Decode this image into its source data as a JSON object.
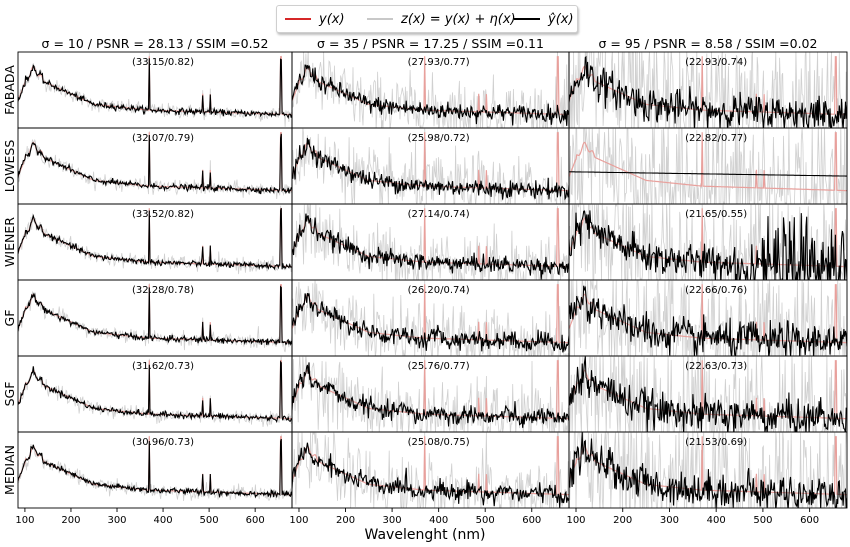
{
  "legend": {
    "entries": [
      {
        "label": "y(x)",
        "color": "#d62728"
      },
      {
        "label": "z(x) = y(x) + η(x)",
        "color": "#c8c8c8"
      },
      {
        "label": "ŷ(x)",
        "color": "#000000"
      }
    ]
  },
  "xlabel": "Wavelenght (nm)",
  "chart_data": {
    "type": "line",
    "layout": "grid 6 rows x 3 columns, shared x axis",
    "xlim": [
      85,
      680
    ],
    "xticks": [
      100,
      200,
      300,
      400,
      500,
      600
    ],
    "columns": [
      {
        "sigma": "10",
        "psnr": "28.13",
        "ssim": "0.52",
        "title": "σ = 10 / PSNR = 28.13 / SSIM =0.52"
      },
      {
        "sigma": "35",
        "psnr": "17.25",
        "ssim": "0.11",
        "title": "σ = 35 / PSNR = 17.25 / SSIM =0.11"
      },
      {
        "sigma": "95",
        "psnr": "8.58",
        "ssim": "0.02",
        "title": "σ = 95 / PSNR = 8.58 / SSIM =0.02"
      }
    ],
    "rows": [
      {
        "method": "FABADA",
        "scores": [
          "(33.15/0.82)",
          "(27.93/0.77)",
          "(22.93/0.74)"
        ]
      },
      {
        "method": "LOWESS",
        "scores": [
          "(32.07/0.79)",
          "(25.98/0.72)",
          "(22.82/0.77)"
        ]
      },
      {
        "method": "WIENER",
        "scores": [
          "(33.52/0.82)",
          "(27.14/0.74)",
          "(21.65/0.55)"
        ]
      },
      {
        "method": "GF",
        "scores": [
          "(32.28/0.78)",
          "(26.20/0.74)",
          "(22.66/0.76)"
        ]
      },
      {
        "method": "SGF",
        "scores": [
          "(31.62/0.73)",
          "(25.76/0.77)",
          "(22.63/0.73)"
        ]
      },
      {
        "method": "MEDIAN",
        "scores": [
          "(30.96/0.73)",
          "(25.08/0.75)",
          "(21.53/0.69)"
        ]
      }
    ],
    "series": [
      {
        "name": "y(x)",
        "role": "true spectrum",
        "color": "#e8a09c"
      },
      {
        "name": "z(x) = y(x) + η(x)",
        "role": "noisy spectrum",
        "color": "#d0d0d0"
      },
      {
        "name": "ŷ(x)",
        "role": "recovered spectrum",
        "color": "#000000"
      }
    ],
    "grid": false,
    "legend_position": "top-center"
  }
}
